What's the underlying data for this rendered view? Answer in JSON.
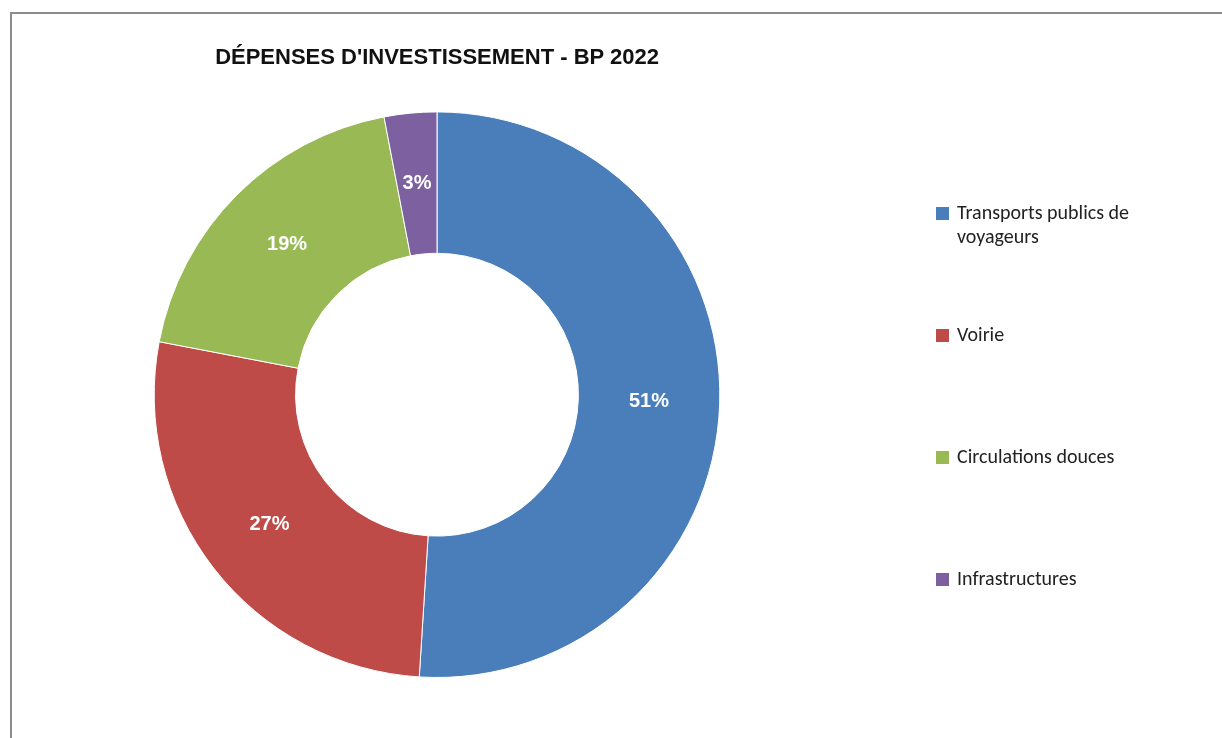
{
  "chart_data": {
    "type": "donut",
    "title": "DÉPENSES D'INVESTISSEMENT - BP 2022",
    "categories": [
      "Transports publics de voyageurs",
      "Voirie",
      "Circulations douces",
      "Infrastructures"
    ],
    "values": [
      51,
      27,
      19,
      3
    ],
    "value_labels": [
      "51%",
      "27%",
      "19%",
      "3%"
    ],
    "colors": [
      "#4a7ebb",
      "#be4b48",
      "#98b954",
      "#7d60a0"
    ],
    "legend": "right"
  }
}
